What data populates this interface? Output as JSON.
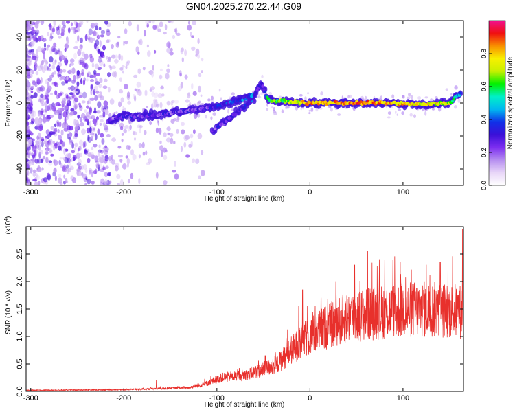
{
  "title": "GN04.2025.270.22.44.G09",
  "chart_data": [
    {
      "type": "heatmap",
      "name": "spectrogram",
      "xlabel": "Height of straight line (km)",
      "ylabel": "Frequency (Hz)",
      "xlim": [
        -305,
        165
      ],
      "ylim": [
        -50,
        50
      ],
      "x_ticks": [
        -300,
        -200,
        -100,
        0,
        100
      ],
      "y_ticks": [
        -40,
        -20,
        0,
        20,
        40
      ],
      "colorbar": {
        "label": "Normalized spectral amplitude",
        "range": [
          0,
          1
        ],
        "ticks": [
          0.0,
          0.2,
          0.4,
          0.6,
          0.8
        ],
        "colors": [
          "#ffffff",
          "#e8d6f8",
          "#b68ef0",
          "#7d2ef0",
          "#3b10d8",
          "#1030e8",
          "#00b8f0",
          "#00f0c8",
          "#00f000",
          "#c8f000",
          "#f8f000",
          "#f89000",
          "#f01010",
          "#f01090"
        ]
      },
      "ridge": [
        {
          "x": -215,
          "y": -10,
          "amp": 0.25
        },
        {
          "x": -200,
          "y": -8,
          "amp": 0.35
        },
        {
          "x": -180,
          "y": -8,
          "amp": 0.3
        },
        {
          "x": -160,
          "y": -7,
          "amp": 0.3
        },
        {
          "x": -140,
          "y": -5,
          "amp": 0.3
        },
        {
          "x": -120,
          "y": -4,
          "amp": 0.3
        },
        {
          "x": -100,
          "y": -2,
          "amp": 0.35
        },
        {
          "x": -80,
          "y": 1,
          "amp": 0.4
        },
        {
          "x": -60,
          "y": 5,
          "amp": 0.45
        },
        {
          "x": -52,
          "y": 12,
          "amp": 0.3
        },
        {
          "x": -45,
          "y": 2,
          "amp": 0.6
        },
        {
          "x": -30,
          "y": 1,
          "amp": 0.7
        },
        {
          "x": 0,
          "y": 0,
          "amp": 0.85
        },
        {
          "x": 40,
          "y": 0,
          "amp": 0.9
        },
        {
          "x": 80,
          "y": 0,
          "amp": 0.88
        },
        {
          "x": 120,
          "y": -1,
          "amp": 0.8
        },
        {
          "x": 150,
          "y": 0,
          "amp": 0.75
        },
        {
          "x": 162,
          "y": 6,
          "amp": 0.5
        }
      ],
      "branch": [
        {
          "x": -105,
          "y": -17,
          "amp": 0.3
        },
        {
          "x": -90,
          "y": -11,
          "amp": 0.35
        },
        {
          "x": -75,
          "y": -4,
          "amp": 0.35
        },
        {
          "x": -60,
          "y": 2,
          "amp": 0.4
        }
      ]
    },
    {
      "type": "line",
      "name": "snr",
      "xlabel": "Height of straight line (km)",
      "ylabel": "SNR (10 * v/v)",
      "y_multiplier": "(x10",
      "y_multiplier_exp": "4",
      "y_multiplier_close": ")",
      "xlim": [
        -305,
        165
      ],
      "ylim": [
        0,
        3.0
      ],
      "x_ticks": [
        -300,
        -200,
        -100,
        0,
        100
      ],
      "y_ticks": [
        0.0,
        0.5,
        1.0,
        1.5,
        2.0,
        2.5
      ],
      "color": "#e8302c",
      "envelope": [
        {
          "x": -305,
          "y": 0.02
        },
        {
          "x": -200,
          "y": 0.03
        },
        {
          "x": -170,
          "y": 0.05
        },
        {
          "x": -130,
          "y": 0.07
        },
        {
          "x": -110,
          "y": 0.15
        },
        {
          "x": -95,
          "y": 0.25
        },
        {
          "x": -70,
          "y": 0.3
        },
        {
          "x": -50,
          "y": 0.4
        },
        {
          "x": -35,
          "y": 0.5
        },
        {
          "x": -20,
          "y": 0.75
        },
        {
          "x": -5,
          "y": 0.95
        },
        {
          "x": 15,
          "y": 1.15
        },
        {
          "x": 40,
          "y": 1.35
        },
        {
          "x": 80,
          "y": 1.45
        },
        {
          "x": 120,
          "y": 1.5
        },
        {
          "x": 165,
          "y": 1.45
        }
      ],
      "spikes": [
        {
          "x": -165,
          "y": 0.2
        },
        {
          "x": -48,
          "y": 0.65
        },
        {
          "x": -12,
          "y": 1.55
        },
        {
          "x": -8,
          "y": 1.85
        },
        {
          "x": 12,
          "y": 1.7
        },
        {
          "x": 28,
          "y": 2.0
        },
        {
          "x": 48,
          "y": 2.3
        },
        {
          "x": 62,
          "y": 2.55
        },
        {
          "x": 97,
          "y": 2.35
        },
        {
          "x": 125,
          "y": 2.3
        },
        {
          "x": 140,
          "y": 2.35
        },
        {
          "x": 164,
          "y": 2.95
        }
      ]
    }
  ]
}
